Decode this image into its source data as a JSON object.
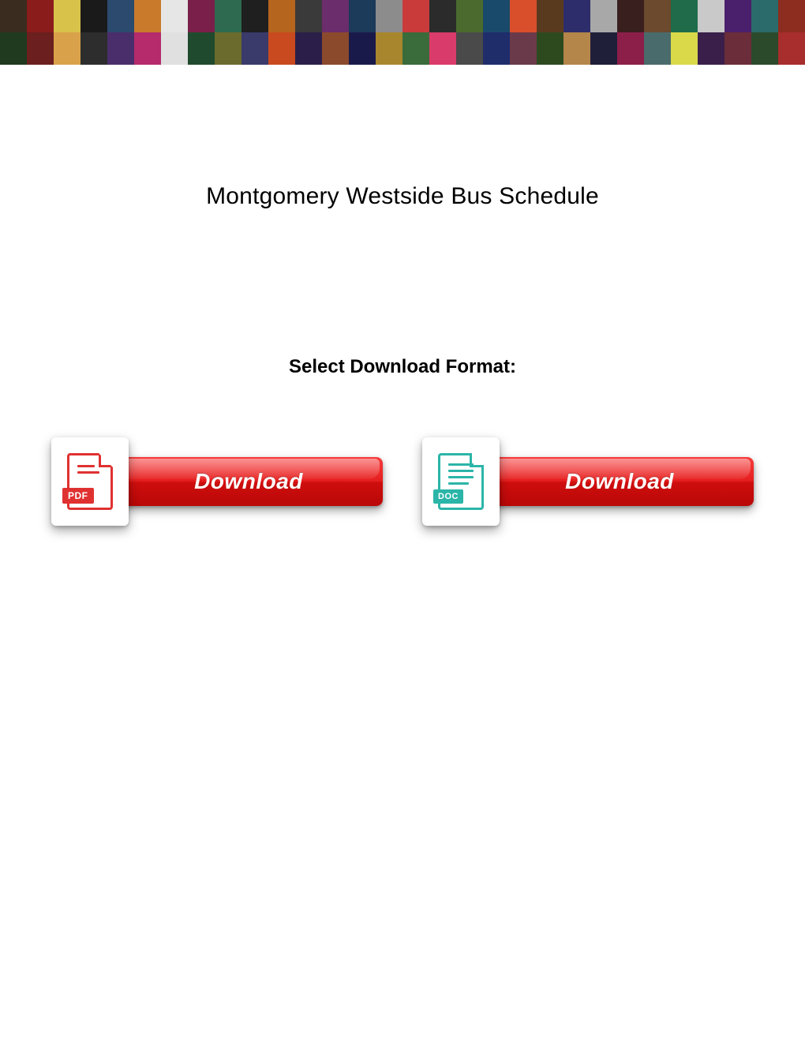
{
  "banner": {
    "rows": 2,
    "cols": 30,
    "tile_colors": [
      "#3a2d1f",
      "#8a1c1c",
      "#d9c24a",
      "#1a1a1a",
      "#2b4a6e",
      "#c97a2b",
      "#e6e6e6",
      "#7a1f4a",
      "#2d6a4f",
      "#1f1f1f",
      "#b5651d",
      "#3a3a3a",
      "#6b2d6b",
      "#1c3a5a",
      "#8c8c8c",
      "#c93b3b",
      "#2b2b2b",
      "#4a6b2d",
      "#1a4a6b",
      "#d94f2b",
      "#5a3a1f",
      "#2d2d6b",
      "#a8a8a8",
      "#3a1f1f",
      "#6b4a2d",
      "#1f6b4a",
      "#c9c9c9",
      "#4a1f6b",
      "#2b6b6b",
      "#8c2d1f",
      "#1f3a1f",
      "#6b1f1f",
      "#d9a24a",
      "#2d2d2d",
      "#4a2d6b",
      "#b52b6b",
      "#e0e0e0",
      "#1f4a2d",
      "#6b6b2d",
      "#3a3a6b",
      "#c94a1f",
      "#2b1f4a",
      "#8c4a2d",
      "#1a1a4a",
      "#a8862d",
      "#3a6b3a",
      "#d93b6b",
      "#4a4a4a",
      "#1f2d6b",
      "#6b3a4a",
      "#2d4a1f",
      "#b5864a",
      "#1f1f3a",
      "#8c1f4a",
      "#4a6b6b",
      "#d9d94a",
      "#3a1f4a",
      "#6b2d3a",
      "#2b4a2b",
      "#a82d2d"
    ]
  },
  "title": "Montgomery Westside Bus Schedule",
  "select_label": "Select Download Format:",
  "downloads": {
    "pdf": {
      "icon_label": "PDF",
      "button_label": "Download"
    },
    "doc": {
      "icon_label": "DOC",
      "button_label": "Download"
    }
  },
  "colors": {
    "pdf_accent": "#e03131",
    "doc_accent": "#2bb5a8",
    "button_gradient_top": "#f83b3b",
    "button_gradient_bottom": "#b90707",
    "background": "#ffffff",
    "text": "#000000"
  }
}
